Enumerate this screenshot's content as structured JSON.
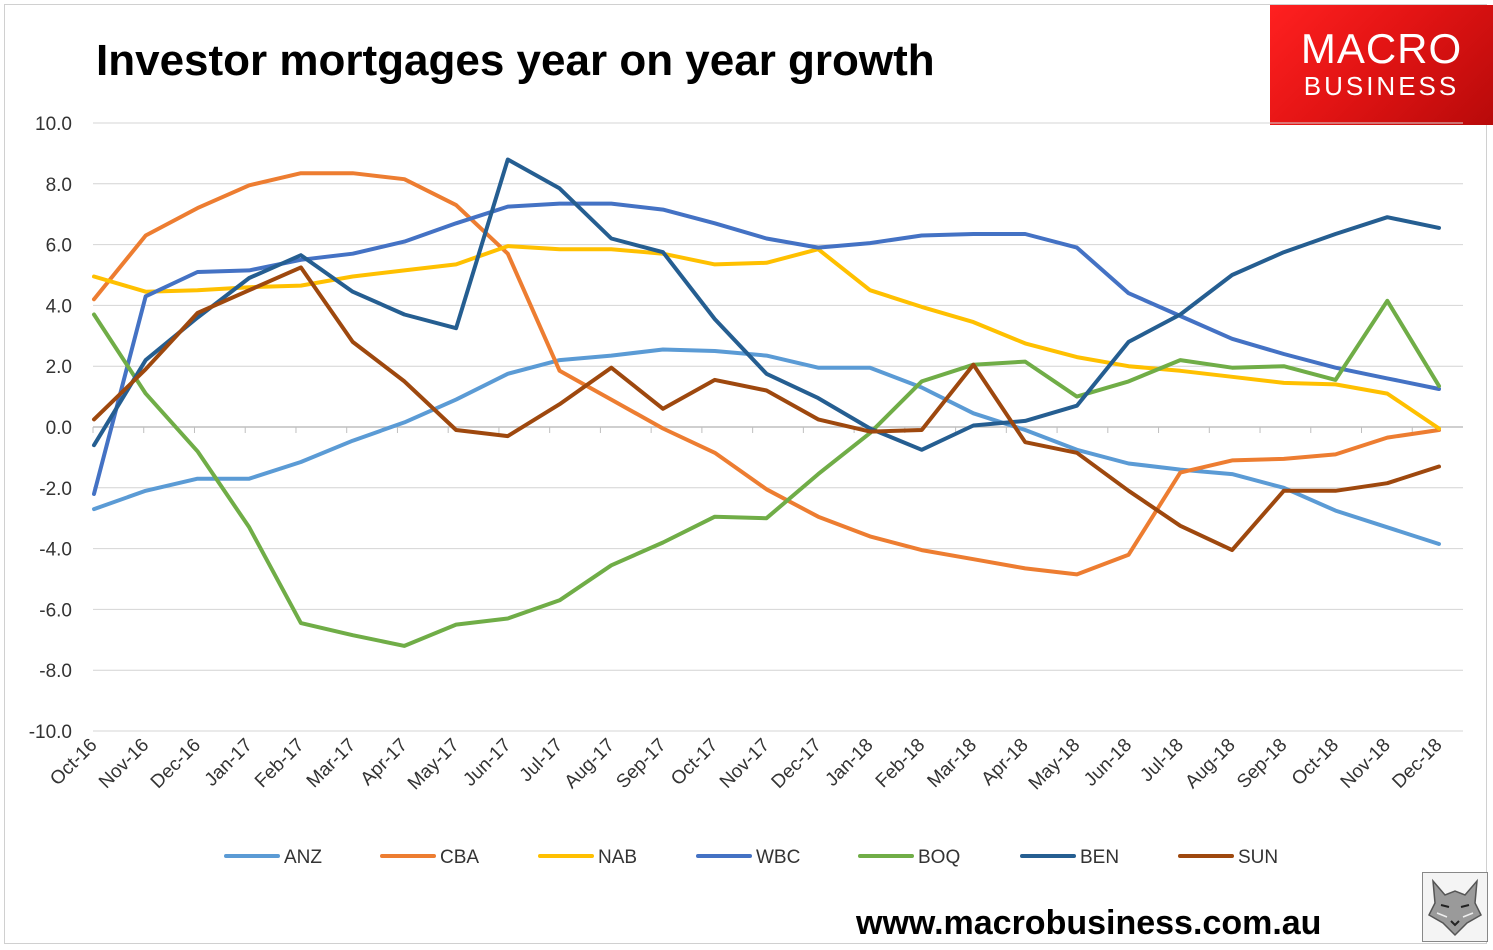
{
  "branding": {
    "logo_line1": "MACRO",
    "logo_line2": "BUSINESS",
    "website": "www.macrobusiness.com.au",
    "logo_color": "#e31414"
  },
  "chart_data": {
    "type": "line",
    "title": "Investor mortgages year on year growth",
    "xlabel": "",
    "ylabel": "",
    "ylim": [
      -10,
      10
    ],
    "yticks": [
      "10.0",
      "8.0",
      "6.0",
      "4.0",
      "2.0",
      "0.0",
      "-2.0",
      "-4.0",
      "-6.0",
      "-8.0",
      "-10.0"
    ],
    "grid": true,
    "legend_position": "bottom",
    "categories": [
      "Oct-16",
      "Nov-16",
      "Dec-16",
      "Jan-17",
      "Feb-17",
      "Mar-17",
      "Apr-17",
      "May-17",
      "Jun-17",
      "Jul-17",
      "Aug-17",
      "Sep-17",
      "Oct-17",
      "Nov-17",
      "Dec-17",
      "Jan-18",
      "Feb-18",
      "Mar-18",
      "Apr-18",
      "May-18",
      "Jun-18",
      "Jul-18",
      "Aug-18",
      "Sep-18",
      "Oct-18",
      "Nov-18",
      "Dec-18"
    ],
    "series": [
      {
        "name": "ANZ",
        "color": "#5b9bd5",
        "values": [
          -2.7,
          -2.1,
          -1.7,
          -1.7,
          -1.15,
          -0.45,
          0.15,
          0.9,
          1.75,
          2.2,
          2.35,
          2.55,
          2.5,
          2.35,
          1.95,
          1.95,
          1.3,
          0.45,
          -0.1,
          -0.75,
          -1.2,
          -1.4,
          -1.55,
          -2.0,
          -2.75,
          -3.3,
          -3.85
        ]
      },
      {
        "name": "CBA",
        "color": "#ed7d31",
        "values": [
          4.2,
          6.3,
          7.2,
          7.95,
          8.35,
          8.35,
          8.15,
          7.3,
          5.7,
          1.85,
          0.9,
          -0.05,
          -0.85,
          -2.05,
          -2.95,
          -3.6,
          -4.05,
          -4.35,
          -4.65,
          -4.85,
          -4.2,
          -1.5,
          -1.1,
          -1.05,
          -0.9,
          -0.35,
          -0.1
        ]
      },
      {
        "name": "NAB",
        "color": "#ffc000",
        "values": [
          4.95,
          4.45,
          4.5,
          4.6,
          4.65,
          4.95,
          5.15,
          5.35,
          5.95,
          5.85,
          5.85,
          5.7,
          5.35,
          5.4,
          5.85,
          4.5,
          3.95,
          3.45,
          2.75,
          2.3,
          2.0,
          1.85,
          1.65,
          1.45,
          1.4,
          1.1,
          -0.05
        ]
      },
      {
        "name": "WBC",
        "color": "#4472c4",
        "values": [
          -2.2,
          4.3,
          5.1,
          5.15,
          5.5,
          5.7,
          6.1,
          6.7,
          7.25,
          7.35,
          7.35,
          7.15,
          6.7,
          6.2,
          5.9,
          6.05,
          6.3,
          6.35,
          6.35,
          5.9,
          4.4,
          3.65,
          2.9,
          2.4,
          1.95,
          1.6,
          1.25
        ]
      },
      {
        "name": "BOQ",
        "color": "#70ad47",
        "values": [
          3.7,
          1.1,
          -0.8,
          -3.3,
          -6.45,
          -6.85,
          -7.2,
          -6.5,
          -6.3,
          -5.7,
          -4.55,
          -3.8,
          -2.95,
          -3.0,
          -1.55,
          -0.2,
          1.5,
          2.05,
          2.15,
          1.0,
          1.5,
          2.2,
          1.95,
          2.0,
          1.55,
          4.15,
          1.35
        ]
      },
      {
        "name": "BEN",
        "color": "#255e91",
        "values": [
          -0.6,
          2.2,
          3.6,
          4.9,
          5.65,
          4.45,
          3.7,
          3.25,
          8.8,
          7.85,
          6.2,
          5.75,
          3.55,
          1.75,
          0.95,
          -0.05,
          -0.75,
          0.05,
          0.2,
          0.7,
          2.8,
          3.7,
          5.0,
          5.75,
          6.35,
          6.9,
          6.55
        ]
      },
      {
        "name": "SUN",
        "color": "#9e480e",
        "values": [
          0.25,
          1.9,
          3.75,
          4.5,
          5.25,
          2.8,
          1.5,
          -0.1,
          -0.3,
          0.75,
          1.95,
          0.6,
          1.55,
          1.2,
          0.25,
          -0.15,
          -0.1,
          2.05,
          -0.5,
          -0.85,
          -2.1,
          -3.25,
          -4.05,
          -2.1,
          -2.1,
          -1.85,
          -1.3
        ]
      }
    ]
  }
}
